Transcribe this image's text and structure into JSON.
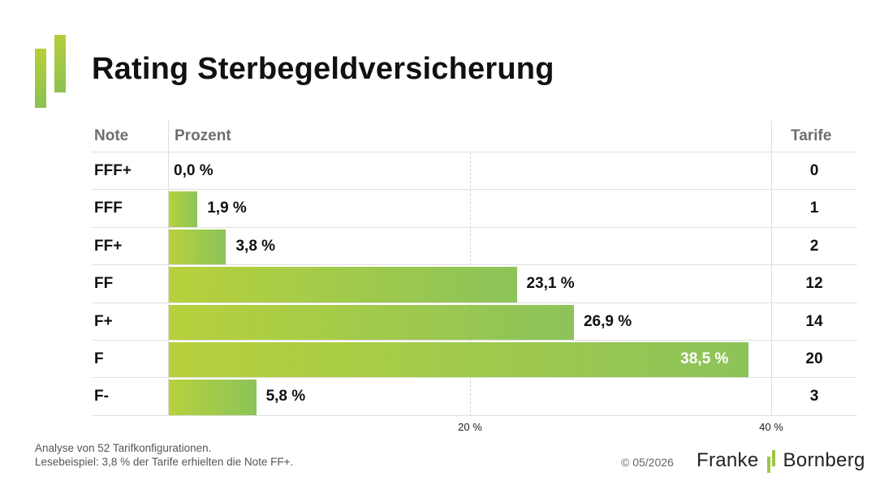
{
  "title": "Rating Sterbegeldversicherung",
  "headers": {
    "note": "Note",
    "prozent": "Prozent",
    "tarife": "Tarife"
  },
  "chart_data": {
    "type": "bar",
    "orientation": "horizontal",
    "categories": [
      "FFF+",
      "FFF",
      "FF+",
      "FF",
      "F+",
      "F",
      "F-"
    ],
    "values": [
      0.0,
      1.9,
      3.8,
      23.1,
      26.9,
      38.5,
      5.8
    ],
    "value_labels": [
      "0,0 %",
      "1,9 %",
      "3,8 %",
      "23,1 %",
      "26,9 %",
      "38,5 %",
      "5,8 %"
    ],
    "tarife": [
      "0",
      "1",
      "2",
      "12",
      "14",
      "20",
      "3"
    ],
    "xlim": [
      0,
      40
    ],
    "xticks": [
      20,
      40
    ],
    "xtick_labels": [
      "20 %",
      "40 %"
    ],
    "grid": true,
    "colors": {
      "bar_start": "#b7d13c",
      "bar_end": "#8cc35a"
    }
  },
  "footer": {
    "line1": "Analyse von 52 Tarifkonfigurationen.",
    "line2": "Lesebeispiel: 3,8 % der Tarife erhielten die Note FF+.",
    "copyright": "© 05/2026"
  },
  "brand": {
    "word1": "Franke",
    "word2": "Bornberg",
    "icon": "franke-bornberg-logo-icon"
  }
}
